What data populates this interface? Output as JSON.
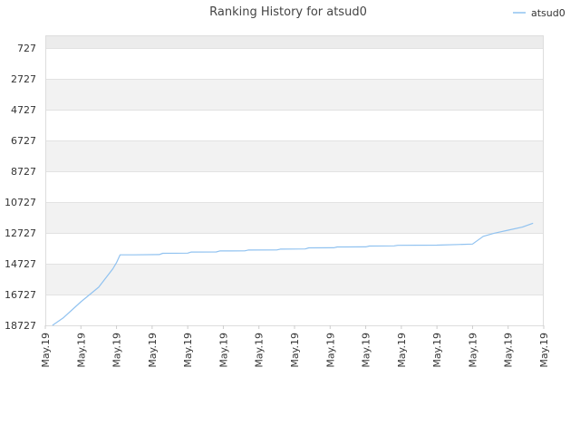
{
  "chart_data": {
    "type": "line",
    "title": "Ranking History for atsud0",
    "legend": {
      "position": "top-right",
      "entries": [
        "atsud0"
      ]
    },
    "colors": {
      "series": "#90c2f0",
      "band": "#f2f2f2",
      "border": "#dddddd",
      "top_band": "#ececec"
    },
    "grid": true,
    "y_inverted": true,
    "ylim": [
      727,
      18727
    ],
    "y_ticks": [
      "727",
      "2727",
      "4727",
      "6727",
      "8727",
      "10727",
      "12727",
      "14727",
      "16727",
      "18727"
    ],
    "y_tick_values": [
      727,
      2727,
      4727,
      6727,
      8727,
      10727,
      12727,
      14727,
      16727,
      18727
    ],
    "x_ticks": [
      "May.19",
      "May.19",
      "May.19",
      "May.19",
      "May.19",
      "May.19",
      "May.19",
      "May.19",
      "May.19",
      "May.19",
      "May.19",
      "May.19",
      "May.19",
      "May.19",
      "May.19"
    ],
    "series": [
      {
        "name": "atsud0",
        "x": [
          0.2,
          0.5,
          1.0,
          1.5,
          1.9,
          2.0,
          2.1,
          2.5,
          3.2,
          3.3,
          4.0,
          4.1,
          4.8,
          4.9,
          5.6,
          5.7,
          6.5,
          6.6,
          7.3,
          7.4,
          8.1,
          8.2,
          9.0,
          9.1,
          9.8,
          9.9,
          11.0,
          11.6,
          12.0,
          12.3,
          12.6,
          13.0,
          13.4,
          13.7
        ],
        "y": [
          18727,
          18250,
          17200,
          16250,
          15050,
          14650,
          14150,
          14150,
          14130,
          14050,
          14040,
          13970,
          13960,
          13900,
          13890,
          13840,
          13830,
          13780,
          13770,
          13700,
          13690,
          13640,
          13630,
          13580,
          13570,
          13530,
          13520,
          13480,
          13450,
          12950,
          12750,
          12550,
          12350,
          12100
        ]
      }
    ]
  }
}
